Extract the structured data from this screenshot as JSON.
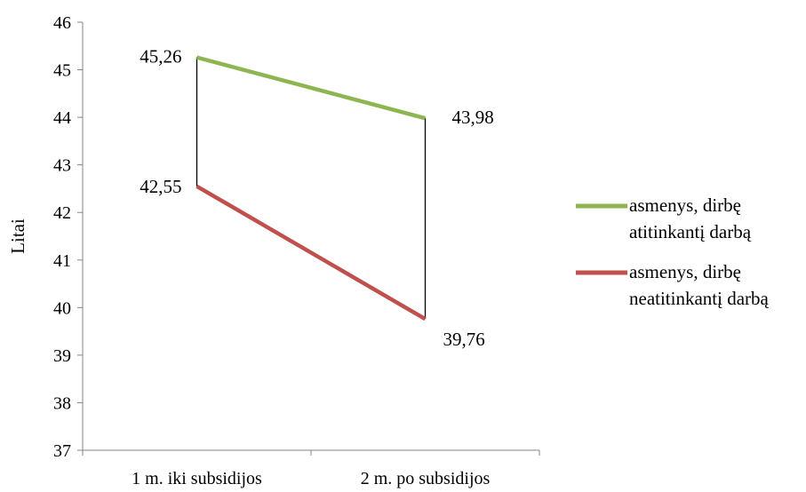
{
  "chart_data": {
    "type": "line",
    "title": "",
    "xlabel": "",
    "ylabel": "Litai",
    "ylim": [
      37,
      46
    ],
    "y_ticks": [
      "37",
      "38",
      "39",
      "40",
      "41",
      "42",
      "43",
      "44",
      "45",
      "46"
    ],
    "categories": [
      "1 m. iki subsidijos",
      "2 m. po subsidijos"
    ],
    "grid": false,
    "legend_position": "right",
    "series": [
      {
        "name_lines": [
          "asmenys, dirbę",
          "atitinkantį darbą"
        ],
        "values": [
          45.26,
          43.98
        ],
        "value_labels": [
          "45,26",
          "43,98"
        ],
        "color": "#8DB650"
      },
      {
        "name_lines": [
          "asmenys, dirbę",
          "neatitinkantį darbą"
        ],
        "values": [
          42.55,
          39.76
        ],
        "value_labels": [
          "42,55",
          "39,76"
        ],
        "color": "#C0504D"
      }
    ],
    "connector_color": "#000000"
  }
}
